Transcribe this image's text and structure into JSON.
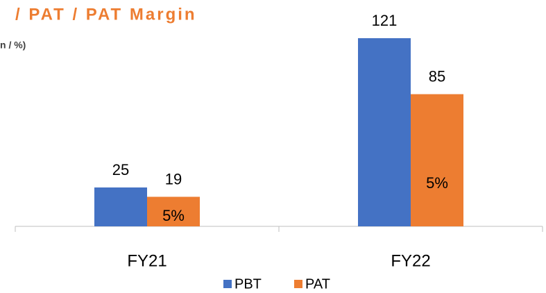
{
  "chart_data": {
    "type": "bar",
    "title": "/ PAT / PAT Margin",
    "subtitle": "n / %)",
    "categories": [
      "FY21",
      "FY22"
    ],
    "series": [
      {
        "name": "PBT",
        "color": "#4472C4",
        "values": [
          25,
          121
        ]
      },
      {
        "name": "PAT",
        "color": "#ED7D31",
        "values": [
          19,
          85
        ]
      }
    ],
    "margin": {
      "values": [
        5,
        5
      ],
      "value_labels": [
        "5%",
        "5%"
      ]
    }
  }
}
